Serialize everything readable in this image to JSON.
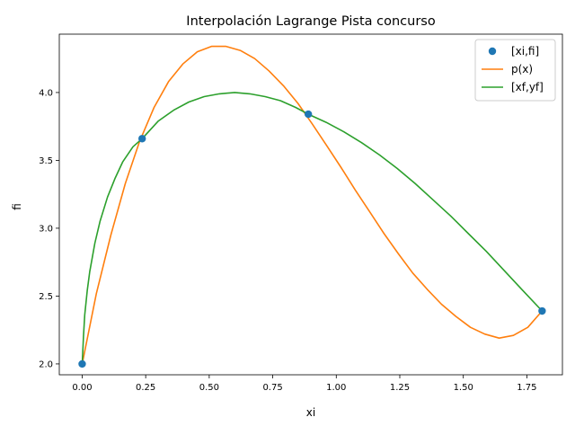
{
  "chart_data": {
    "type": "line",
    "title": "Interpolación Lagrange Pista concurso",
    "xlabel": "xi",
    "ylabel": "fi",
    "xlim": [
      -0.09,
      1.89
    ],
    "ylim": [
      1.92,
      4.43
    ],
    "xticks": [
      0.0,
      0.25,
      0.5,
      0.75,
      1.0,
      1.25,
      1.5,
      1.75
    ],
    "xtick_labels": [
      "0.00",
      "0.25",
      "0.50",
      "0.75",
      "1.00",
      "1.25",
      "1.50",
      "1.75"
    ],
    "yticks": [
      2.0,
      2.5,
      3.0,
      3.5,
      4.0
    ],
    "ytick_labels": [
      "2.0",
      "2.5",
      "3.0",
      "3.5",
      "4.0"
    ],
    "grid": false,
    "legend_position": "upper right",
    "series": [
      {
        "name": "[xi,fi]",
        "kind": "scatter",
        "color": "#1f77b4",
        "x": [
          0.0,
          0.236,
          0.89,
          1.81
        ],
        "y": [
          2.0,
          3.66,
          3.84,
          2.39
        ]
      },
      {
        "name": "p(x)",
        "kind": "line",
        "color": "#ff7f0e",
        "x": [
          0.0,
          0.056,
          0.113,
          0.17,
          0.226,
          0.283,
          0.34,
          0.396,
          0.453,
          0.509,
          0.566,
          0.622,
          0.679,
          0.735,
          0.792,
          0.849,
          0.905,
          0.962,
          1.018,
          1.075,
          1.132,
          1.188,
          1.245,
          1.301,
          1.358,
          1.414,
          1.471,
          1.528,
          1.584,
          1.641,
          1.697,
          1.754,
          1.81
        ],
        "y": [
          2.0,
          2.52,
          2.95,
          3.33,
          3.64,
          3.89,
          4.08,
          4.21,
          4.3,
          4.34,
          4.34,
          4.31,
          4.25,
          4.16,
          4.05,
          3.92,
          3.77,
          3.61,
          3.45,
          3.28,
          3.12,
          2.96,
          2.81,
          2.67,
          2.55,
          2.44,
          2.35,
          2.27,
          2.22,
          2.19,
          2.21,
          2.27,
          2.39
        ]
      },
      {
        "name": "[xf,yf]",
        "kind": "line",
        "color": "#2ca02c",
        "x": [
          0.0,
          0.005,
          0.01,
          0.02,
          0.03,
          0.05,
          0.07,
          0.1,
          0.13,
          0.16,
          0.2,
          0.236,
          0.3,
          0.36,
          0.42,
          0.48,
          0.54,
          0.6,
          0.66,
          0.72,
          0.78,
          0.84,
          0.89,
          0.96,
          1.03,
          1.1,
          1.17,
          1.24,
          1.31,
          1.38,
          1.45,
          1.52,
          1.59,
          1.66,
          1.73,
          1.81
        ],
        "y": [
          2.0,
          2.2,
          2.36,
          2.54,
          2.68,
          2.89,
          3.05,
          3.23,
          3.37,
          3.49,
          3.6,
          3.66,
          3.79,
          3.87,
          3.93,
          3.97,
          3.99,
          4.0,
          3.99,
          3.97,
          3.94,
          3.89,
          3.84,
          3.78,
          3.71,
          3.63,
          3.54,
          3.44,
          3.33,
          3.21,
          3.09,
          2.96,
          2.83,
          2.69,
          2.55,
          2.39
        ]
      }
    ]
  }
}
